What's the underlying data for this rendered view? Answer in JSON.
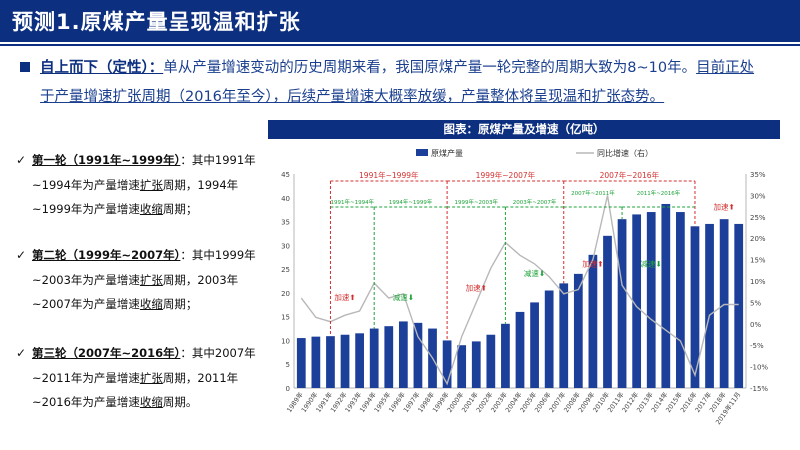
{
  "header": {
    "title": "预测1.原煤产量呈现温和扩张"
  },
  "summary": {
    "lead": "自上而下（定性）：",
    "text1": "单从产量增速变动的历史周期来看，我国原煤产量一轮完整的周期大致为8~10年。",
    "text2": "目前正处于产量增速扩张周期（2016年至今），后续产量增速大概率放缓，产量整体将呈现温和扩张态势。"
  },
  "waves": [
    {
      "label": "第一轮（1991年~1999年）",
      "pre": "：其中1991年~1994年为产量增速",
      "u1": "扩张",
      "mid": "周期，1994年~1999年为产量增速",
      "u2": "收缩",
      "post": "周期；"
    },
    {
      "label": "第二轮（1999年~2007年）",
      "pre": "：其中1999年~2003年为产量增速",
      "u1": "扩张",
      "mid": "周期，2003年~2007年为产量增速",
      "u2": "收缩",
      "post": "周期；"
    },
    {
      "label": "第三轮（2007年~2016年）",
      "pre": "：其中2007年~2011年为产量增速",
      "u1": "扩张",
      "mid": "周期，2011年~2016年为产量增速",
      "u2": "收缩",
      "post": "周期。"
    }
  ],
  "chart_title": "图表：原煤产量及增速（亿吨）",
  "chart_data": {
    "type": "bar",
    "title": "图表：原煤产量及增速（亿吨）",
    "categories": [
      "1989年",
      "1990年",
      "1991年",
      "1992年",
      "1993年",
      "1994年",
      "1995年",
      "1996年",
      "1997年",
      "1998年",
      "1999年",
      "2000年",
      "2001年",
      "2002年",
      "2003年",
      "2004年",
      "2005年",
      "2006年",
      "2007年",
      "2008年",
      "2009年",
      "2010年",
      "2011年",
      "2012年",
      "2013年",
      "2014年",
      "2015年",
      "2016年",
      "2017年",
      "2018年",
      "2019年11月"
    ],
    "series": [
      {
        "name": "原煤产量",
        "axis": "left",
        "type": "bar",
        "color": "#1c3f9a",
        "values": [
          10.5,
          10.8,
          10.9,
          11.2,
          11.5,
          12.5,
          13.0,
          14.0,
          13.7,
          12.5,
          10.0,
          9.0,
          9.8,
          11.2,
          13.5,
          16.0,
          18.0,
          20.5,
          22.0,
          24.0,
          28.0,
          32.0,
          35.5,
          36.5,
          37.0,
          38.7,
          37.0,
          34.0,
          34.5,
          35.5,
          34.5
        ]
      },
      {
        "name": "同比增速（右）",
        "axis": "right",
        "type": "line",
        "color": "#b8b8b8",
        "values": [
          6.0,
          1.5,
          0.5,
          2.0,
          3.0,
          9.5,
          6.0,
          7.0,
          -3.0,
          -8.0,
          -14.0,
          -3.0,
          5.0,
          13.0,
          19.0,
          16.0,
          14.0,
          11.0,
          7.0,
          8.0,
          15.0,
          30.0,
          9.0,
          4.0,
          1.0,
          -1.5,
          -4.0,
          -12.0,
          2.0,
          4.5,
          4.5
        ]
      }
    ],
    "ylim": [
      0,
      45
    ],
    "yticks": [
      "0",
      "5",
      "10",
      "15",
      "20",
      "25",
      "30",
      "35",
      "40",
      "45"
    ],
    "y2lim": [
      -15,
      35
    ],
    "y2ticks": [
      "-15%",
      "-10%",
      "-5%",
      "0%",
      "5%",
      "10%",
      "15%",
      "20%",
      "25%",
      "30%",
      "35%"
    ],
    "legend": {
      "position": "top",
      "items": [
        "原煤产量",
        "同比增速（右）"
      ]
    },
    "big_periods": [
      {
        "label": "1991年~1999年",
        "from": "1991年",
        "to": "1999年"
      },
      {
        "label": "1999年~2007年",
        "from": "1999年",
        "to": "2007年"
      },
      {
        "label": "2007年~2016年",
        "from": "2007年",
        "to": "2016年"
      }
    ],
    "small_periods": [
      {
        "label": "1991年~1994年",
        "from": "1991年",
        "to": "1994年"
      },
      {
        "label": "1994年~1999年",
        "from": "1994年",
        "to": "1999年"
      },
      {
        "label": "1999年~2003年",
        "from": "1999年",
        "to": "2003年"
      },
      {
        "label": "2003年~2007年",
        "from": "2003年",
        "to": "2007年"
      },
      {
        "label": "2007年~2011年",
        "from": "2007年",
        "to": "2011年"
      },
      {
        "label": "2011年~2016年",
        "from": "2011年",
        "to": "2016年"
      }
    ],
    "annotations": [
      {
        "text": "加速⬆",
        "kind": "up",
        "at": "1992年",
        "value": 18.5
      },
      {
        "text": "减速⬇",
        "kind": "down",
        "at": "1996年",
        "value": 18.5
      },
      {
        "text": "加速⬆",
        "kind": "up",
        "at": "2001年",
        "value": 20.5
      },
      {
        "text": "减速⬇",
        "kind": "down",
        "at": "2005年",
        "value": 23.5
      },
      {
        "text": "加速⬆",
        "kind": "up",
        "at": "2009年",
        "value": 25.5
      },
      {
        "text": "减速⬇",
        "kind": "down",
        "at": "2013年",
        "value": 25.5
      },
      {
        "text": "加速⬆",
        "kind": "up",
        "at": "2018年",
        "value": 37.5
      }
    ],
    "colors": {
      "big": "#d32f2f",
      "small": "#1fa33a",
      "up": "#d32f2f",
      "down": "#1fa33a"
    }
  }
}
